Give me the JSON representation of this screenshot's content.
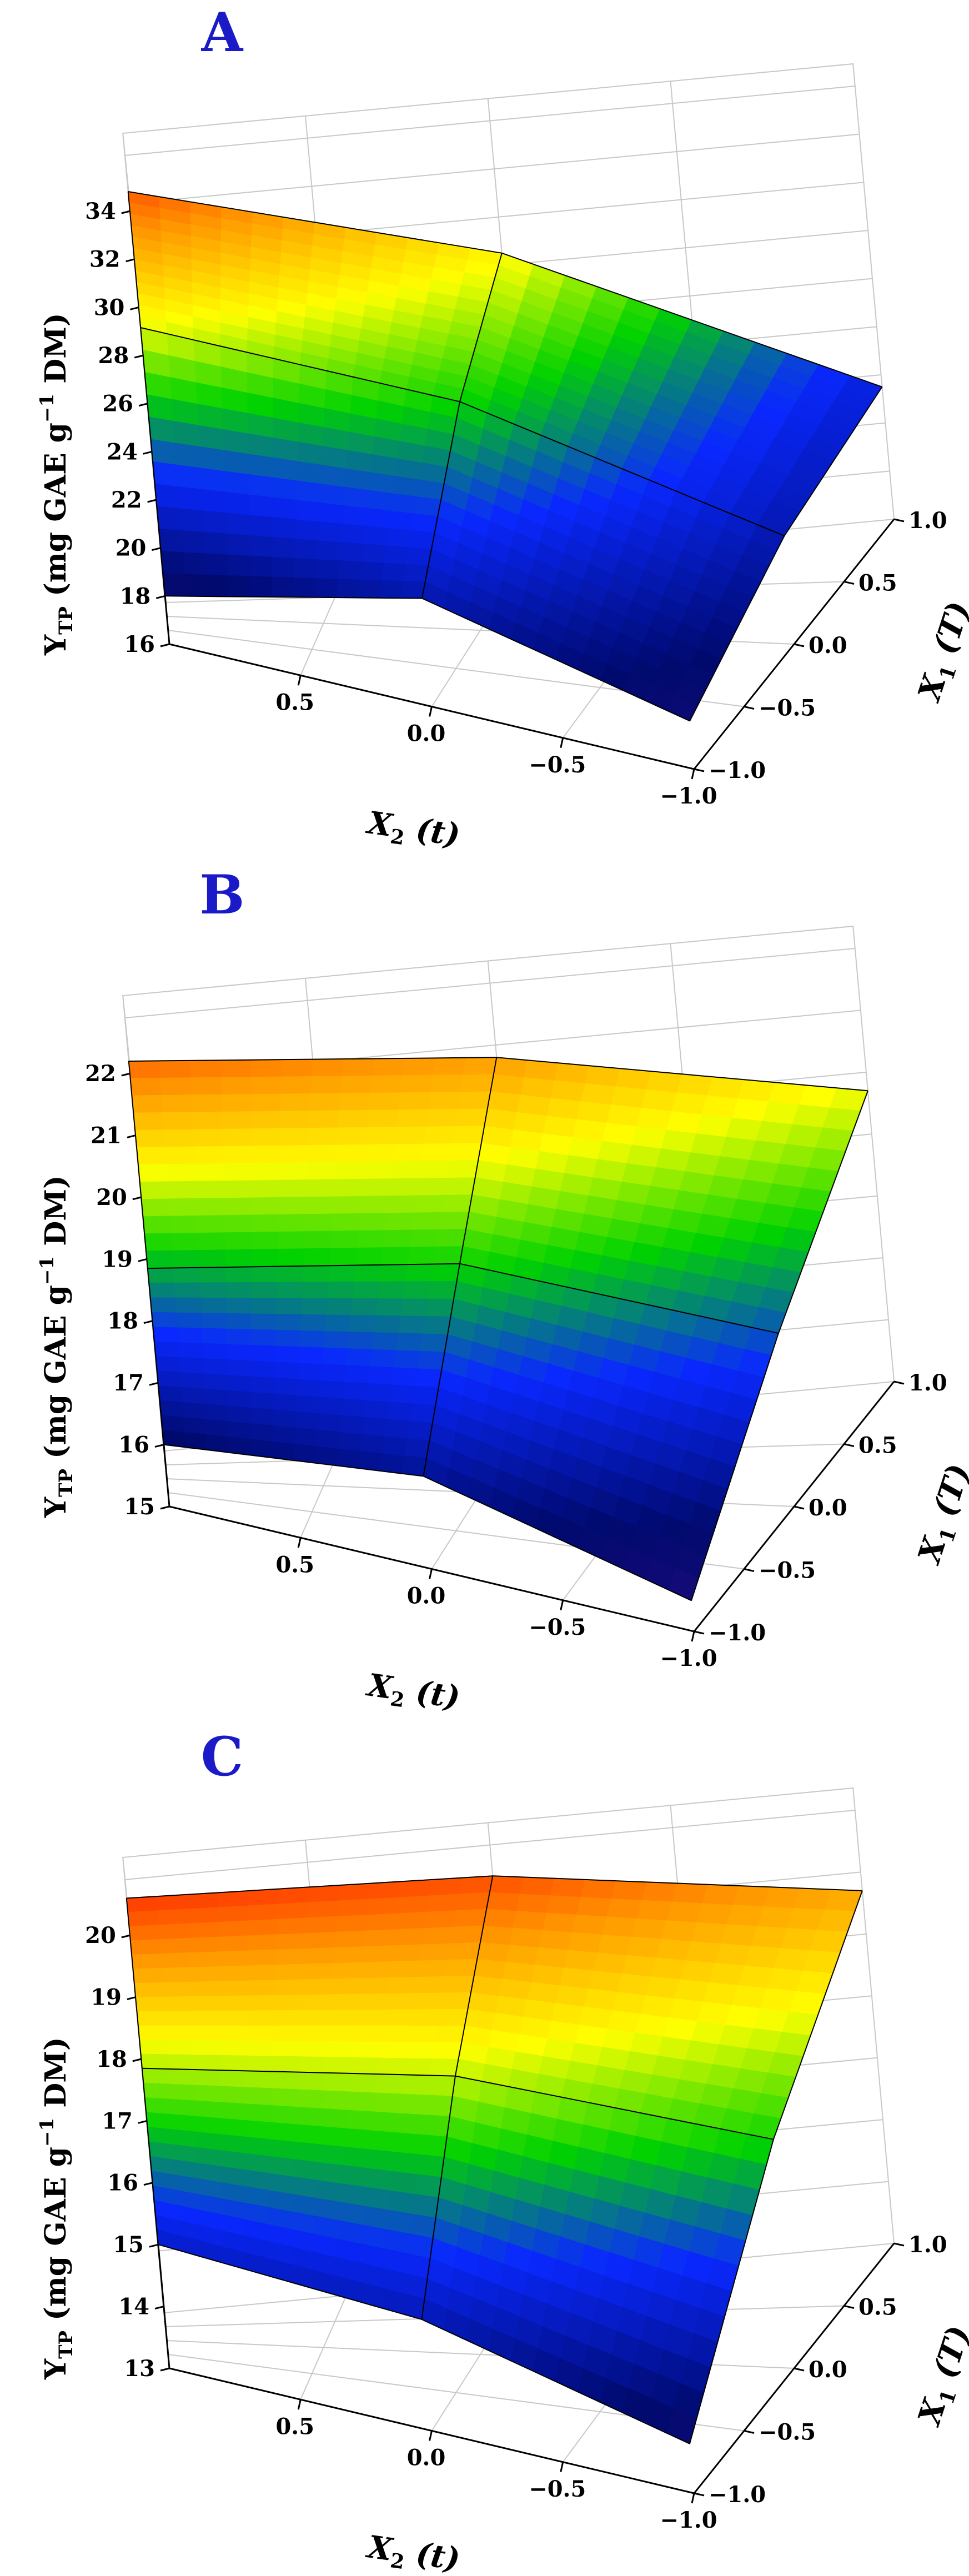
{
  "chart_data": [
    {
      "type": "surface",
      "title": "A",
      "x1": [
        -1.0,
        0.0,
        1.0
      ],
      "x2": [
        -1.0,
        0.0,
        1.0
      ],
      "z": [
        [
          18.0,
          20.5,
          21.5
        ],
        [
          20.5,
          25.5,
          28.5
        ],
        [
          18.0,
          28.0,
          32.5
        ]
      ],
      "zlim": [
        16,
        34
      ],
      "z_ticks": [
        "16",
        "18",
        "20",
        "22",
        "24",
        "26",
        "28",
        "30",
        "32",
        "34"
      ],
      "x1_ticks": [
        "1.0",
        "0.5",
        "0.0",
        "−0.5",
        "−1.0"
      ],
      "x2_ticks": [
        "0.5",
        "0.0",
        "−0.5",
        "−1.0"
      ]
    },
    {
      "type": "surface",
      "title": "B",
      "x1": [
        -1.0,
        0.0,
        1.0
      ],
      "x2": [
        -1.0,
        0.0,
        1.0
      ],
      "z": [
        [
          15.5,
          17.8,
          19.7
        ],
        [
          16.5,
          18.7,
          20.8
        ],
        [
          16.0,
          18.4,
          21.3
        ]
      ],
      "zlim": [
        15,
        22
      ],
      "z_ticks": [
        "15",
        "16",
        "17",
        "18",
        "19",
        "20",
        "21",
        "22"
      ],
      "x1_ticks": [
        "1.0",
        "0.5",
        "0.0",
        "−0.5",
        "−1.0"
      ],
      "x2_ticks": [
        "0.5",
        "0.0",
        "−0.5",
        "−1.0"
      ]
    },
    {
      "type": "surface",
      "title": "C",
      "x1": [
        -1.0,
        0.0,
        1.0
      ],
      "x2": [
        -1.0,
        0.0,
        1.0
      ],
      "z": [
        [
          13.8,
          16.7,
          18.7
        ],
        [
          14.8,
          17.5,
          19.5
        ],
        [
          15.0,
          17.4,
          19.7
        ]
      ],
      "zlim": [
        13,
        20
      ],
      "z_ticks": [
        "13",
        "14",
        "15",
        "16",
        "17",
        "18",
        "19",
        "20"
      ],
      "x1_ticks": [
        "1.0",
        "0.5",
        "0.0",
        "−0.5",
        "−1.0"
      ],
      "x2_ticks": [
        "0.5",
        "0.0",
        "−0.5",
        "−1.0"
      ]
    }
  ],
  "labels": {
    "z_axis": {
      "main": "Y",
      "sub": "TP",
      "unit_pre": " (mg GAE g",
      "sup": "−1",
      "unit_post": " DM)"
    },
    "x1_axis": {
      "main": "X",
      "sub": "1",
      "var": " (T)"
    },
    "x2_axis": {
      "main": "X",
      "sub": "2",
      "var": " (t)"
    }
  }
}
